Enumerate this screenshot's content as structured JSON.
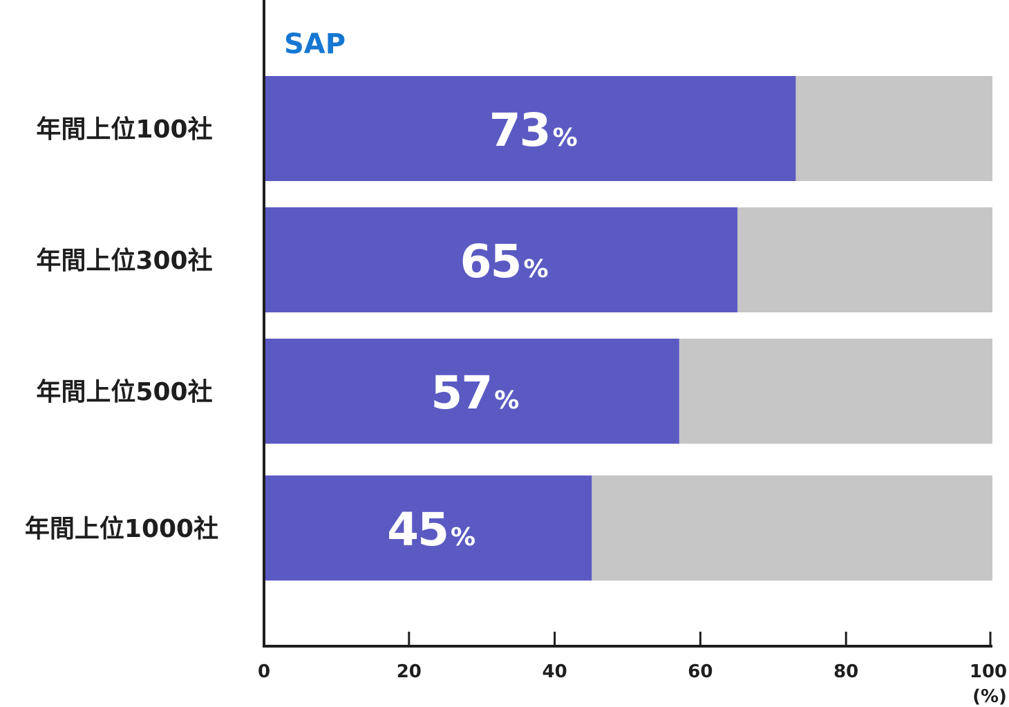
{
  "chart_data": {
    "type": "bar",
    "orientation": "horizontal",
    "stacked_remainder": true,
    "categories": [
      "年間上位100社",
      "年間上位300社",
      "年間上位500社",
      "年間上位1000社"
    ],
    "series": [
      {
        "name": "SAP",
        "values": [
          73,
          65,
          57,
          45
        ],
        "color": "#5b5ac3"
      }
    ],
    "value_labels": [
      "73",
      "65",
      "57",
      "45"
    ],
    "value_unit": "%",
    "remainder_color": "#c6c6c6",
    "series_label_color": "#1677d2",
    "xlim": [
      0,
      100
    ],
    "xticks": [
      0,
      20,
      40,
      60,
      80,
      100
    ],
    "xtick_labels": [
      "0",
      "20",
      "40",
      "60",
      "80",
      "100"
    ],
    "x_unit_label": "(%)",
    "grid": false,
    "legend": "none"
  }
}
